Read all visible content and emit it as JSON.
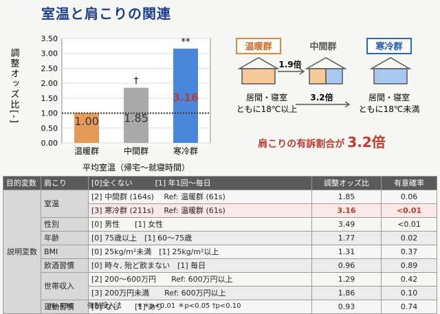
{
  "title": "室温と肩こりの関連",
  "chart_data": {
    "type": "bar",
    "categories": [
      "温暖群",
      "中間群",
      "寒冷群"
    ],
    "values": [
      1.0,
      1.85,
      3.16
    ],
    "value_labels": [
      "1.00",
      "1.85",
      "3.16"
    ],
    "markers": [
      "",
      "†",
      "**"
    ],
    "ylabel": "調整オッズ比[-]",
    "xlabel": "平均室温（帰宅～就寝時間）",
    "ylim": [
      0,
      3.5
    ],
    "yticks": [
      "0.00",
      "0.50",
      "1.00",
      "1.50",
      "2.00",
      "2.50",
      "3.00",
      "3.50"
    ],
    "reference_line": 1.0,
    "colors": {
      "warm": "#e69b5a",
      "mid": "#a9a9a9",
      "cold": "#4a86d9"
    }
  },
  "diagram": {
    "warm_label": "温暖群",
    "mid_label": "中間群",
    "cold_label": "寒冷群",
    "ratio_mid": "1.9倍",
    "ratio_cold": "3.2倍",
    "left_text1": "居間・寝室",
    "left_text2": "ともに18℃以上",
    "right_text1": "居間・寝室",
    "right_text2": "ともに18℃未満",
    "headline_prefix": "肩こりの有訴割合が",
    "headline_value": "3.2倍"
  },
  "table": {
    "headers": [
      "目的変数",
      "肩こり",
      "[0]全くない",
      "[1] 年1回～毎日",
      "調整オッズ比",
      "有意確率"
    ],
    "group_label": "説明変数",
    "rows": [
      {
        "var": "室温",
        "desc": "[2] 中間群 (164s)　 Ref: 温暖群 (61s)",
        "or": "1.85",
        "p": "0.06"
      },
      {
        "var": "",
        "desc": "[3] 寒冷群 (211s)　 Ref: 温暖群 (61s)",
        "or": "3.16",
        "p": "<0.01"
      },
      {
        "var": "性別",
        "desc": "[0] 男性　　[1] 女性",
        "or": "3.49",
        "p": "<0.01"
      },
      {
        "var": "年齢",
        "desc": "[0] 75歳以上　[1] 60～75歳",
        "or": "1.77",
        "p": "0.02"
      },
      {
        "var": "BMI",
        "desc": "[0] 25kg/m²未満　[1] 25kg/m²以上",
        "or": "1.31",
        "p": "0.37"
      },
      {
        "var": "飲酒習慣",
        "desc": "[0] 時々, 殆ど飲まない　[1] 毎日",
        "or": "0.96",
        "p": "0.89"
      },
      {
        "var": "世帯収入",
        "desc": "[2] 200～600万円　　Ref: 600万円以上",
        "or": "1.29",
        "p": "0.42"
      },
      {
        "var": "",
        "desc": "[3] 200万円未満　　Ref: 600万円以上",
        "or": "1.86",
        "p": "0.10"
      },
      {
        "var": "運動習慣",
        "desc": "[0] なし　　[1] あり",
        "or": "0.93",
        "p": "0.74"
      }
    ]
  },
  "footnote": {
    "n": "n=436",
    "method": "強制投入法",
    "sig": "＊＊p<0.01 ＊p<0.05 †p<0.10"
  }
}
